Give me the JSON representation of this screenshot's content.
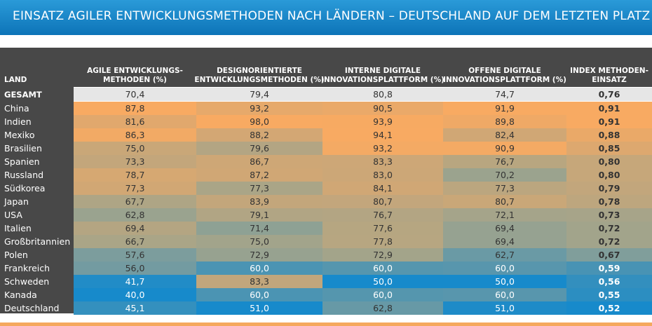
{
  "header": {
    "title": "EINSATZ AGILER ENTWICKLUNGSMETHODEN  NACH LÄNDERN – DEUTSCHLAND AUF DEM LETZTEN PLATZ"
  },
  "table": {
    "columns": [
      "LAND",
      "AGILE ENTWICKLUNGS-\nMETHODEN (%)",
      "DESIGNORIENTIERTE\nENTWICKLUNGSMETHODEN (%)",
      "INTERNE DIGITALE\nINNOVATIONSPLATTFORM (%)",
      "OFFENE DIGITALE\nINNOVATIONSPLATTFORM (%)",
      "INDEX METHODEN-\nEINSATZ"
    ],
    "total": [
      "GESAMT",
      "70,4",
      "79,4",
      "80,8",
      "74,7",
      "0,76"
    ],
    "rows": [
      [
        "China",
        "87,8",
        "93,2",
        "90,5",
        "91,9",
        "0,91"
      ],
      [
        "Indien",
        "81,6",
        "98,0",
        "93,9",
        "89,8",
        "0,91"
      ],
      [
        "Mexiko",
        "86,3",
        "88,2",
        "94,1",
        "82,4",
        "0,88"
      ],
      [
        "Brasilien",
        "75,0",
        "79,6",
        "93,2",
        "90,9",
        "0,85"
      ],
      [
        "Spanien",
        "73,3",
        "86,7",
        "83,3",
        "76,7",
        "0,80"
      ],
      [
        "Russland",
        "78,7",
        "87,2",
        "83,0",
        "70,2",
        "0,80"
      ],
      [
        "Südkorea",
        "77,3",
        "77,3",
        "84,1",
        "77,3",
        "0,79"
      ],
      [
        "Japan",
        "67,7",
        "83,9",
        "80,7",
        "80,7",
        "0,78"
      ],
      [
        "USA",
        "62,8",
        "79,1",
        "76,7",
        "72,1",
        "0,73"
      ],
      [
        "Italien",
        "69,4",
        "71,4",
        "77,6",
        "69,4",
        "0,72"
      ],
      [
        "Großbritannien",
        "66,7",
        "75,0",
        "77,8",
        "69,4",
        "0,72"
      ],
      [
        "Polen",
        "57,6",
        "72,9",
        "72,9",
        "62,7",
        "0,67"
      ],
      [
        "Frankreich",
        "56,0",
        "60,0",
        "60,0",
        "60,0",
        "0,59"
      ],
      [
        "Schweden",
        "41,7",
        "83,3",
        "50,0",
        "50,0",
        "0,56"
      ],
      [
        "Kanada",
        "40,0",
        "60,0",
        "60,0",
        "60,0",
        "0,55"
      ],
      [
        "Deutschland",
        "45,1",
        "51,0",
        "62,8",
        "51,0",
        "0,52"
      ]
    ]
  }
}
